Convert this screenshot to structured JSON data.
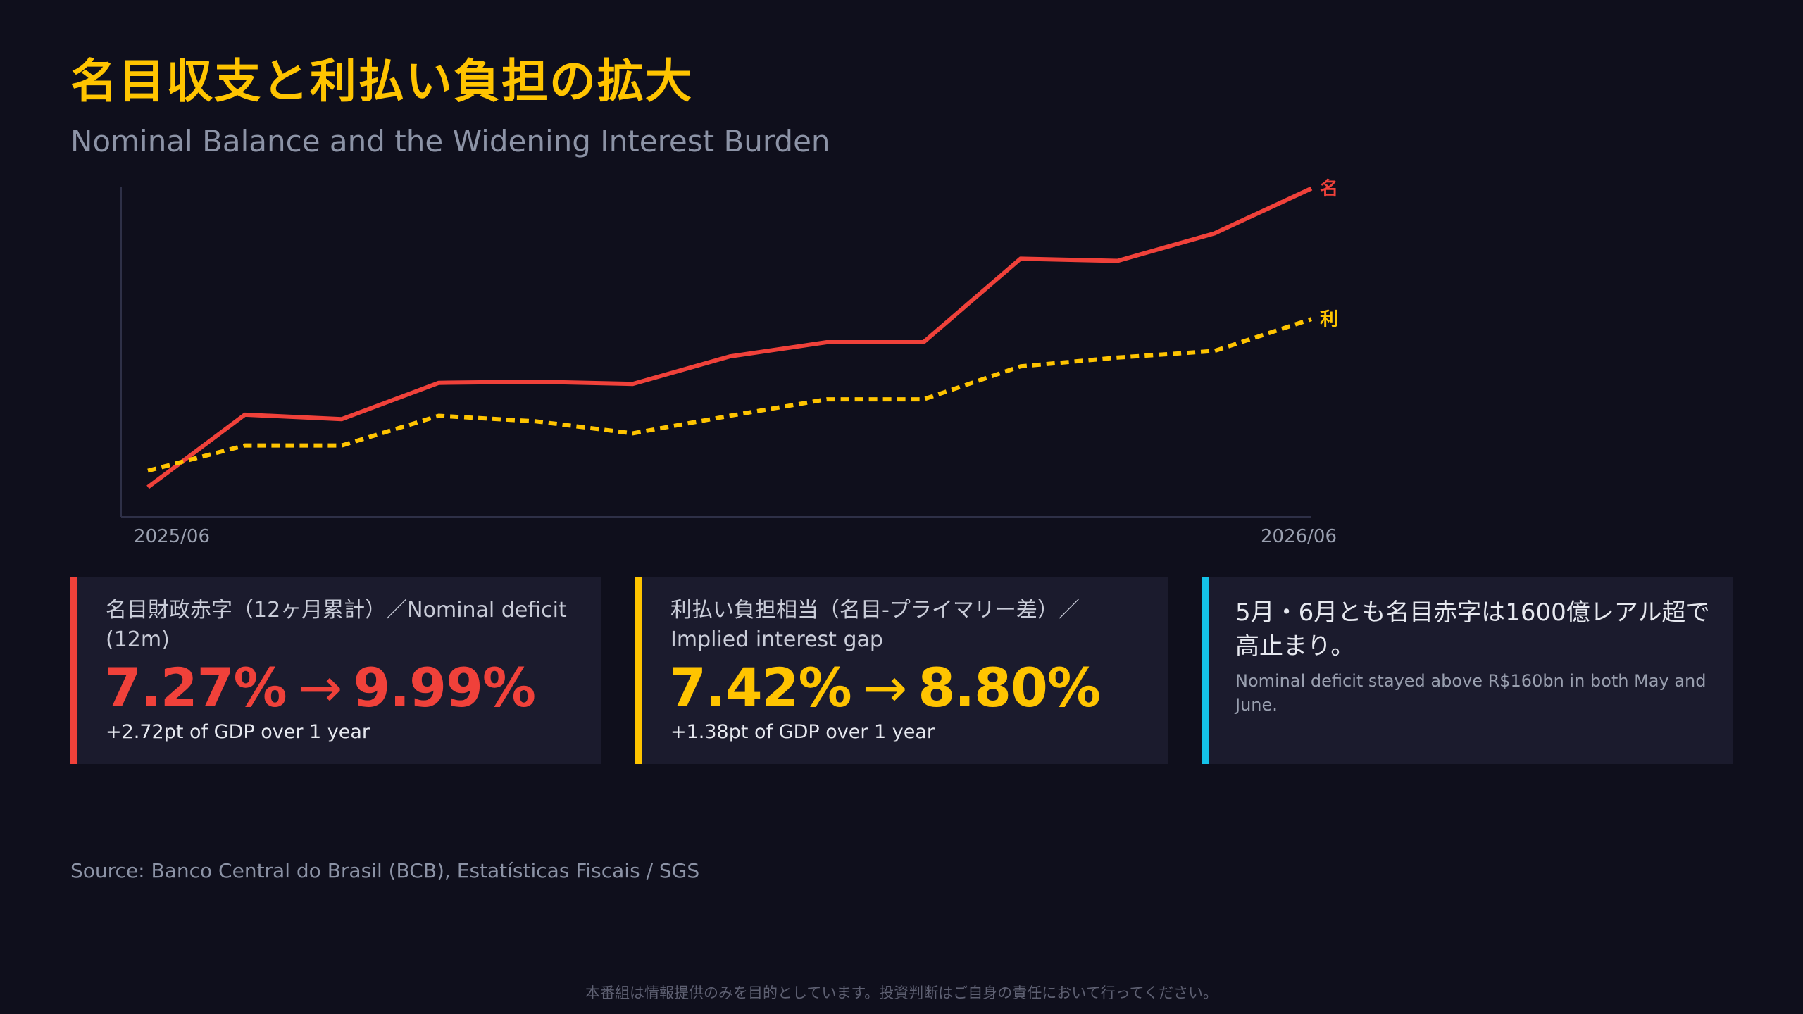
{
  "header": {
    "title": "名目収支と利払い負担の拡大",
    "subtitle": "Nominal Balance and the Widening Interest Burden"
  },
  "chart_data": {
    "type": "line",
    "x_start_label": "2025/06",
    "x_end_label": "2026/06",
    "ylim": [
      7.0,
      10.0
    ],
    "grid": false,
    "series": [
      {
        "name": "名",
        "color": "#f0413a",
        "style": "solid",
        "values": [
          7.27,
          7.93,
          7.89,
          8.22,
          8.23,
          8.21,
          8.46,
          8.59,
          8.59,
          9.35,
          9.33,
          9.58,
          9.99
        ]
      },
      {
        "name": "利",
        "color": "#ffc400",
        "style": "dashed",
        "values": [
          7.42,
          7.65,
          7.65,
          7.92,
          7.87,
          7.76,
          7.92,
          8.07,
          8.07,
          8.37,
          8.45,
          8.51,
          8.8
        ]
      }
    ]
  },
  "cards": [
    {
      "label": "名目財政赤字（12ヶ月累計）／Nominal deficit (12m)",
      "value_from": "7.27%",
      "arrow": "→",
      "value_to": "9.99%",
      "note": "+2.72pt of GDP over 1 year",
      "color": "#f0413a"
    },
    {
      "label": "利払い負担相当（名目-プライマリー差）／Implied interest gap",
      "value_from": "7.42%",
      "arrow": "→",
      "value_to": "8.80%",
      "note": "+1.38pt of GDP over 1 year",
      "color": "#ffc400"
    },
    {
      "jp": "5月・6月とも名目赤字は1600億レアル超で高止まり。",
      "en": "Nominal deficit stayed above R$160bn in both May and June.",
      "color": "#14c2e8"
    }
  ],
  "footer": {
    "source": "Source: Banco Central do Brasil (BCB), Estatísticas Fiscais / SGS",
    "disclaimer": "本番組は情報提供のみを目的としています。投資判断はご自身の責任において行ってください。"
  }
}
